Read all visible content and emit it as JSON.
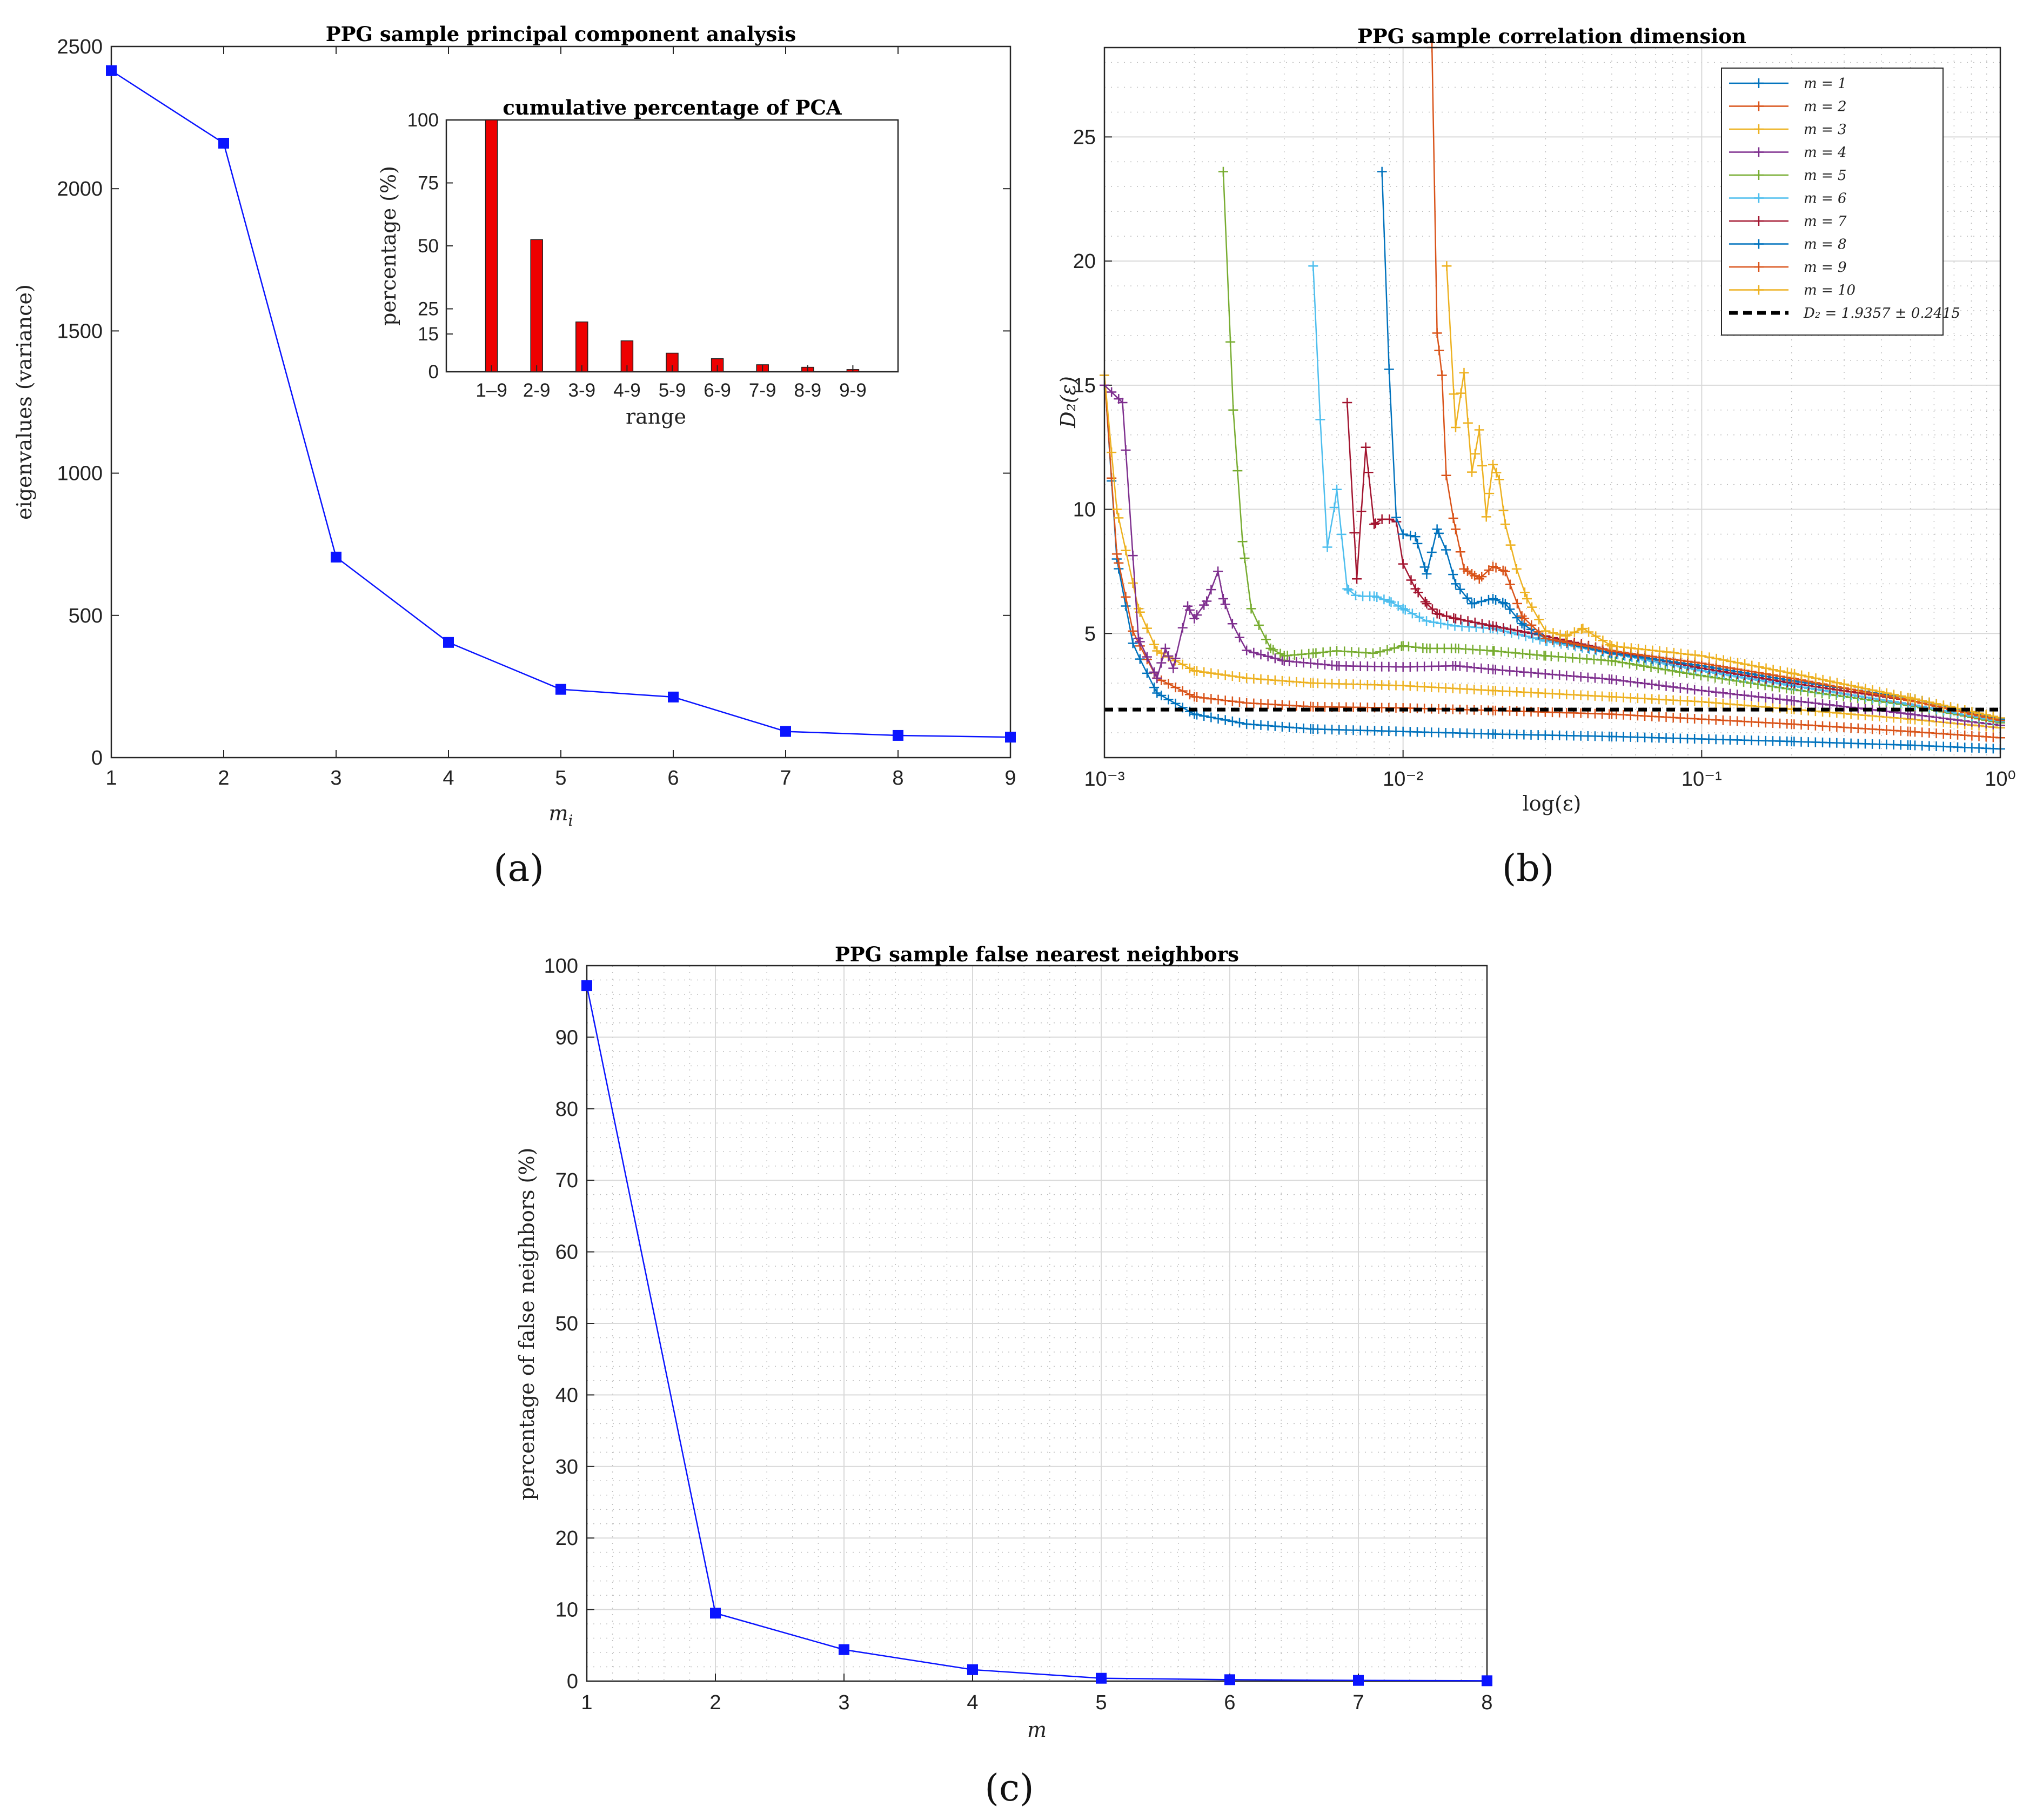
{
  "colors": {
    "blue_line": "#0a14ff",
    "bar_red": "#ee0000",
    "grid": "#d9d9d9",
    "grid_minor": "#bdbdbd",
    "axis": "#262626",
    "mcolors": [
      "#0072BD",
      "#D95319",
      "#EDB120",
      "#7E2F8E",
      "#77AC30",
      "#4DBEEE",
      "#A2142F",
      "#0072BD",
      "#D95319",
      "#EDB120"
    ]
  },
  "panels": {
    "a": "(a)",
    "b": "(b)",
    "c": "(c)"
  },
  "chart_data": [
    {
      "id": "a",
      "type": "line",
      "title": "PPG sample principal component analysis",
      "xlabel": "m",
      "xlabel_sub": "i",
      "ylabel": "eigenvalues (variance)",
      "x": [
        1,
        2,
        3,
        4,
        5,
        6,
        7,
        8,
        9
      ],
      "values": [
        2415,
        2160,
        705,
        405,
        240,
        213,
        92,
        78,
        72
      ],
      "xlim": [
        1,
        9
      ],
      "ylim": [
        0,
        2500
      ],
      "xticks": [
        "1",
        "2",
        "3",
        "4",
        "5",
        "6",
        "7",
        "8",
        "9"
      ],
      "yticks": [
        "0",
        "500",
        "1000",
        "1500",
        "2000",
        "2500"
      ],
      "marker": "square",
      "inset": {
        "type": "bar",
        "title": "cumulative percentage of PCA",
        "xlabel": "range",
        "ylabel": "percentage (%)",
        "categories": [
          "1–9",
          "2-9",
          "3-9",
          "4-9",
          "5-9",
          "6-9",
          "7-9",
          "8-9",
          "9-9"
        ],
        "values": [
          100,
          52.5,
          19.8,
          12.3,
          7.4,
          5.2,
          2.8,
          1.8,
          0.9
        ],
        "ylim": [
          0,
          100
        ],
        "yticks": [
          "0",
          "15",
          "25",
          "50",
          "75",
          "100"
        ],
        "ytick_values": [
          0,
          15,
          25,
          50,
          75,
          100
        ]
      }
    },
    {
      "id": "b",
      "type": "line",
      "title": "PPG sample correlation dimension",
      "xlabel": "log(ε)",
      "ylabel": "D₂(ε)",
      "xscale": "log",
      "xlim": [
        0.001,
        1
      ],
      "ylim": [
        0,
        28.6
      ],
      "xticks": [
        "10⁻³",
        "10⁻²",
        "10⁻¹",
        "10⁰"
      ],
      "yticks": [
        "5",
        "10",
        "15",
        "20",
        "25"
      ],
      "marker": "plus",
      "series": [
        {
          "name": "m = 1",
          "x": [
            0.001,
            0.0011,
            0.00125,
            0.0015,
            0.002,
            0.003,
            0.005,
            0.01,
            0.02,
            0.05,
            0.1,
            0.2,
            0.5,
            1
          ],
          "values": [
            15.4,
            8.0,
            4.5,
            2.6,
            1.75,
            1.35,
            1.15,
            1.05,
            0.95,
            0.85,
            0.75,
            0.65,
            0.5,
            0.35
          ]
        },
        {
          "name": "m = 2",
          "x": [
            0.001,
            0.0011,
            0.00125,
            0.0015,
            0.002,
            0.003,
            0.005,
            0.01,
            0.02,
            0.05,
            0.1,
            0.2,
            0.5,
            1
          ],
          "values": [
            15.4,
            8.2,
            5.0,
            3.2,
            2.45,
            2.2,
            2.05,
            2.0,
            1.9,
            1.75,
            1.55,
            1.35,
            1.05,
            0.8
          ]
        },
        {
          "name": "m = 3",
          "x": [
            0.001,
            0.0011,
            0.0013,
            0.0015,
            0.002,
            0.003,
            0.005,
            0.01,
            0.02,
            0.05,
            0.1,
            0.2,
            0.5,
            1
          ],
          "values": [
            15.4,
            10.0,
            6.0,
            4.3,
            3.5,
            3.2,
            3.0,
            2.9,
            2.7,
            2.45,
            2.25,
            1.95,
            1.55,
            1.2
          ]
        },
        {
          "name": "m = 4",
          "x": [
            0.001,
            0.00115,
            0.0013,
            0.0015,
            0.0016,
            0.0017,
            0.0019,
            0.002,
            0.0022,
            0.0024,
            0.0025,
            0.0027,
            0.003,
            0.004,
            0.006,
            0.01,
            0.015,
            0.02,
            0.05,
            0.1,
            0.2,
            0.5,
            1
          ],
          "values": [
            15.0,
            14.3,
            4.8,
            3.2,
            4.4,
            3.6,
            6.1,
            5.6,
            6.3,
            7.5,
            6.4,
            5.3,
            4.3,
            3.9,
            3.7,
            3.65,
            3.7,
            3.55,
            3.15,
            2.7,
            2.3,
            1.75,
            1.3
          ]
        },
        {
          "name": "m = 5",
          "x": [
            0.0025,
            0.0027,
            0.0029,
            0.0031,
            0.0033,
            0.0036,
            0.004,
            0.005,
            0.006,
            0.008,
            0.01,
            0.012,
            0.015,
            0.02,
            0.03,
            0.05,
            0.1,
            0.2,
            0.5,
            1
          ],
          "values": [
            23.6,
            14.0,
            8.7,
            6.0,
            5.3,
            4.4,
            4.1,
            4.2,
            4.3,
            4.2,
            4.5,
            4.4,
            4.4,
            4.3,
            4.1,
            3.9,
            3.3,
            2.75,
            2.1,
            1.4
          ]
        },
        {
          "name": "m = 6",
          "x": [
            0.005,
            0.0053,
            0.0056,
            0.006,
            0.0065,
            0.007,
            0.008,
            0.009,
            0.01,
            0.012,
            0.015,
            0.02,
            0.03,
            0.05,
            0.1,
            0.2,
            0.5,
            1
          ],
          "values": [
            19.8,
            13.2,
            8.1,
            10.8,
            6.8,
            6.5,
            6.5,
            6.3,
            6.0,
            5.5,
            5.3,
            5.2,
            4.7,
            4.2,
            3.5,
            2.9,
            2.15,
            1.45
          ]
        },
        {
          "name": "m = 7",
          "x": [
            0.0065,
            0.007,
            0.0075,
            0.008,
            0.0085,
            0.009,
            0.0095,
            0.01,
            0.011,
            0.012,
            0.013,
            0.015,
            0.02,
            0.03,
            0.05,
            0.1,
            0.2,
            0.5,
            1
          ],
          "values": [
            14.3,
            7.2,
            12.5,
            9.4,
            9.6,
            9.6,
            9.5,
            7.8,
            6.8,
            6.2,
            5.8,
            5.6,
            5.3,
            4.9,
            4.3,
            3.6,
            3.0,
            2.3,
            1.5
          ]
        },
        {
          "name": "m = 8",
          "x": [
            0.0085,
            0.009,
            0.0095,
            0.01,
            0.011,
            0.012,
            0.013,
            0.014,
            0.015,
            0.017,
            0.02,
            0.022,
            0.025,
            0.03,
            0.05,
            0.1,
            0.2,
            0.5,
            1
          ],
          "values": [
            23.6,
            15.3,
            9.5,
            9.0,
            8.9,
            7.4,
            9.2,
            8.3,
            7.0,
            6.2,
            6.4,
            6.2,
            5.4,
            4.8,
            4.2,
            3.7,
            3.1,
            2.4,
            1.55
          ]
        },
        {
          "name": "m = 9",
          "x": [
            0.0125,
            0.013,
            0.0135,
            0.014,
            0.015,
            0.016,
            0.017,
            0.018,
            0.02,
            0.022,
            0.025,
            0.03,
            0.05,
            0.1,
            0.2,
            0.5,
            1
          ],
          "values": [
            28.6,
            17.1,
            15.4,
            10.9,
            9.2,
            7.6,
            7.4,
            7.2,
            7.7,
            7.5,
            5.7,
            4.8,
            4.3,
            3.8,
            3.2,
            2.3,
            1.5
          ]
        },
        {
          "name": "m = 10",
          "x": [
            0.014,
            0.015,
            0.016,
            0.017,
            0.018,
            0.019,
            0.02,
            0.021,
            0.022,
            0.024,
            0.026,
            0.03,
            0.035,
            0.04,
            0.05,
            0.1,
            0.2,
            0.5,
            1
          ],
          "values": [
            19.8,
            13.3,
            15.5,
            11.5,
            13.2,
            9.7,
            11.8,
            11.2,
            9.4,
            7.6,
            6.4,
            5.1,
            4.9,
            5.2,
            4.5,
            4.1,
            3.4,
            2.4,
            1.6
          ]
        }
      ],
      "reference_line": {
        "name": "D₂ = 1.9357 ± 0.2415",
        "value": 1.9357,
        "style": "dashed",
        "color": "#000000"
      },
      "legend": "top-right"
    },
    {
      "id": "c",
      "type": "line",
      "title": "PPG sample false nearest neighbors",
      "xlabel": "m",
      "ylabel": "percentage of false neighbors (%)",
      "x": [
        1,
        2,
        3,
        4,
        5,
        6,
        7,
        8
      ],
      "values": [
        97.2,
        9.5,
        4.4,
        1.6,
        0.4,
        0.2,
        0.1,
        0.05
      ],
      "xlim": [
        1,
        8
      ],
      "ylim": [
        0,
        100
      ],
      "xticks": [
        "1",
        "2",
        "3",
        "4",
        "5",
        "6",
        "7",
        "8"
      ],
      "yticks": [
        "0",
        "10",
        "20",
        "30",
        "40",
        "50",
        "60",
        "70",
        "80",
        "90",
        "100"
      ],
      "marker": "square"
    }
  ]
}
